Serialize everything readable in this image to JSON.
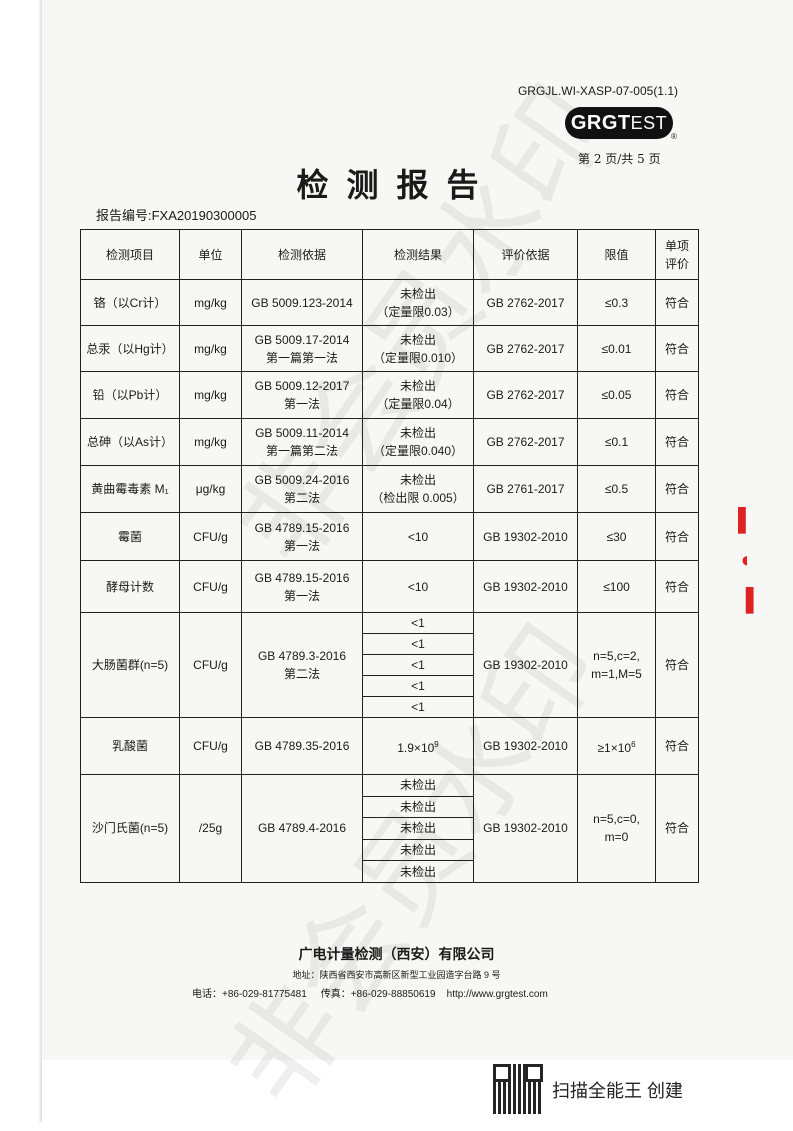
{
  "header": {
    "doc_code": "GRGJL.WI-XASP-07-005(1.1)",
    "logo_bold": "GRGT",
    "logo_light": "EST",
    "page_number": "第 2 页/共 5 页",
    "title": "检测报告",
    "report_no": "报告编号:FXA20190300005"
  },
  "table": {
    "headers": [
      "检测项目",
      "单位",
      "检测依据",
      "检测结果",
      "评价依据",
      "限值",
      "单项评价"
    ],
    "rows": [
      {
        "item": "铬（以Cr计）",
        "unit": "mg/kg",
        "method": "GB 5009.123-2014",
        "method2": "",
        "result": "未检出",
        "result2": "（定量限0.03）",
        "basis": "GB 2762-2017",
        "limit": "≤0.3",
        "verdict": "符合"
      },
      {
        "item": "总汞（以Hg计）",
        "unit": "mg/kg",
        "method": "GB 5009.17-2014",
        "method2": "第一篇第一法",
        "result": "未检出",
        "result2": "（定量限0.010）",
        "basis": "GB 2762-2017",
        "limit": "≤0.01",
        "verdict": "符合"
      },
      {
        "item": "铅（以Pb计）",
        "unit": "mg/kg",
        "method": "GB 5009.12-2017",
        "method2": "第一法",
        "result": "未检出",
        "result2": "（定量限0.04）",
        "basis": "GB 2762-2017",
        "limit": "≤0.05",
        "verdict": "符合"
      },
      {
        "item": "总砷（以As计）",
        "unit": "mg/kg",
        "method": "GB 5009.11-2014",
        "method2": "第一篇第二法",
        "result": "未检出",
        "result2": "（定量限0.040）",
        "basis": "GB 2762-2017",
        "limit": "≤0.1",
        "verdict": "符合"
      },
      {
        "item": "黄曲霉毒素 M₁",
        "unit": "μg/kg",
        "method": "GB 5009.24-2016",
        "method2": "第二法",
        "result": "未检出",
        "result2": "（检出限 0.005）",
        "basis": "GB 2761-2017",
        "limit": "≤0.5",
        "verdict": "符合"
      },
      {
        "item": "霉菌",
        "unit": "CFU/g",
        "method": "GB 4789.15-2016",
        "method2": "第一法",
        "result": "<10",
        "result2": "",
        "basis": "GB 19302-2010",
        "limit": "≤30",
        "verdict": "符合"
      },
      {
        "item": "酵母计数",
        "unit": "CFU/g",
        "method": "GB 4789.15-2016",
        "method2": "第一法",
        "result": "<10",
        "result2": "",
        "basis": "GB 19302-2010",
        "limit": "≤100",
        "verdict": "符合"
      }
    ],
    "coliform": {
      "item": "大肠菌群(n=5)",
      "unit": "CFU/g",
      "method": "GB 4789.3-2016",
      "method2": "第二法",
      "results": [
        "<1",
        "<1",
        "<1",
        "<1",
        "<1"
      ],
      "basis": "GB 19302-2010",
      "limit": "n=5,c=2,",
      "limit2": "m=1,M=5",
      "verdict": "符合"
    },
    "lactic": {
      "item": "乳酸菌",
      "unit": "CFU/g",
      "method": "GB 4789.35-2016",
      "result": "1.9×10",
      "result_exp": "9",
      "basis": "GB 19302-2010",
      "limit": "≥1×10",
      "limit_exp": "6",
      "verdict": "符合"
    },
    "salmonella": {
      "item": "沙门氏菌(n=5)",
      "unit": "/25g",
      "method": "GB 4789.4-2016",
      "results": [
        "未检出",
        "未检出",
        "未检出",
        "未检出",
        "未检出"
      ],
      "basis": "GB 19302-2010",
      "limit": "n=5,c=0,",
      "limit2": "m=0",
      "verdict": "符合"
    }
  },
  "footer": {
    "company": "广电计量检测（西安）有限公司",
    "address": "地址：陕西省西安市高新区新型工业园造字台路 9 号",
    "tel": "电话：+86-029-81775481",
    "fax": "传真：+86-029-88850619",
    "url": "http://www.grgtest.com"
  },
  "watermark": "非会员水印",
  "scanner": "扫描全能王 创建"
}
